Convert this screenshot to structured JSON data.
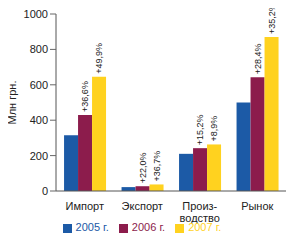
{
  "chart_data": {
    "type": "bar",
    "y_label": "Млн грн.",
    "categories": [
      "Импорт",
      "Экспорт",
      "Произ-\nводство",
      "Рынок"
    ],
    "series": [
      {
        "name": "2005 г.",
        "color": "#1c5aa6",
        "values": [
          315,
          22,
          210,
          500
        ]
      },
      {
        "name": "2006 г.",
        "color": "#8c1c4c",
        "values": [
          430,
          27,
          242,
          643
        ],
        "annotations": [
          "+36,6%",
          "+22,0%",
          "+15,2%",
          "+28,4%"
        ]
      },
      {
        "name": "2007 г.",
        "color": "#ffd21f",
        "values": [
          645,
          37,
          263,
          870
        ],
        "annotations": [
          "+49,9%",
          "+36,7%",
          "+8,9%",
          "+35,2%"
        ]
      }
    ],
    "ylim": [
      0,
      1000
    ],
    "yticks": [
      0,
      200,
      400,
      600,
      800,
      1000
    ],
    "grid": false,
    "legend": "bottom"
  }
}
